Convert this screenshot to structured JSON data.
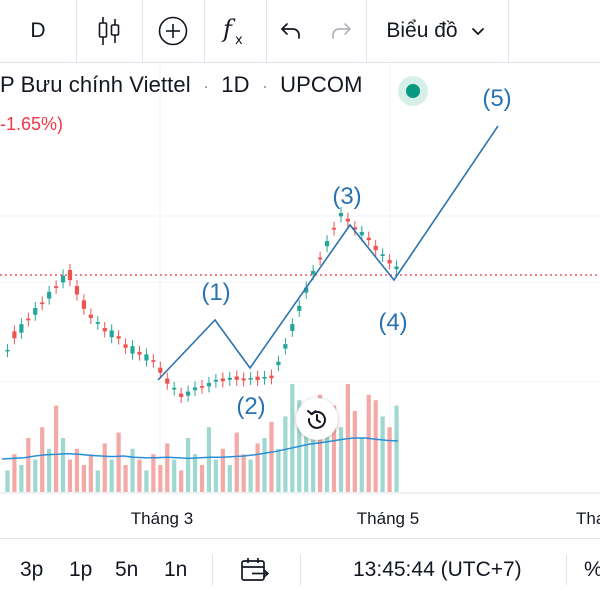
{
  "toolbar": {
    "interval": "D",
    "chart_menu_label": "Biểu đồ",
    "icons": [
      "candlestick-icon",
      "add-circle-icon",
      "fx-indicators-icon",
      "undo-icon",
      "redo-icon",
      "chevron-down-icon"
    ]
  },
  "legend": {
    "symbol_name": "P Bưu chính Viettel",
    "interval": "1D",
    "exchange": "UPCOM",
    "separator": "·",
    "change": "-1.65%)"
  },
  "colors": {
    "up": "#26a69a",
    "down": "#ef5350",
    "volume_up": "#9ed8d0",
    "volume_down": "#f4a9a7",
    "wave": "#2a73b0",
    "ma": "#2b8fd8",
    "price_line": "#f23645",
    "status": "#089981"
  },
  "chart_data": {
    "type": "line",
    "title": "P Bưu chính Viettel · 1D · UPCOM",
    "x_tick_labels": [
      "Tháng 3",
      "Tháng 5",
      "Tha"
    ],
    "candles": [
      [
        0.08,
        0.12
      ],
      [
        0.5,
        0.3
      ],
      [
        0.3,
        0.55
      ],
      [
        0.55,
        0.5
      ],
      [
        0.5,
        0.7
      ],
      [
        0.7,
        0.65
      ],
      [
        0.65,
        0.85
      ],
      [
        0.85,
        0.8
      ],
      [
        0.8,
        1.0
      ],
      [
        1.0,
        0.7
      ],
      [
        0.7,
        0.45
      ],
      [
        0.45,
        0.2
      ],
      [
        0.2,
        0.1
      ],
      [
        0.1,
        0.15
      ],
      [
        0.15,
        0.05
      ],
      [
        0.05,
        0.25
      ],
      [
        0.25,
        0.18
      ],
      [
        0.18,
        0.08
      ],
      [
        0.08,
        0.3
      ],
      [
        0.3,
        0.22
      ],
      [
        0.22,
        0.4
      ],
      [
        0.4,
        0.35
      ],
      [
        0.35,
        0.2
      ],
      [
        0.2,
        0.05
      ],
      [
        0.05,
        0.1
      ],
      [
        0.1,
        0.0
      ],
      [
        0.0,
        0.12
      ],
      [
        0.12,
        0.2
      ],
      [
        0.2,
        0.15
      ],
      [
        0.15,
        0.25
      ],
      [
        0.25,
        0.3
      ],
      [
        0.3,
        0.22
      ],
      [
        0.22,
        0.28
      ],
      [
        0.28,
        0.18
      ],
      [
        0.18,
        0.12
      ],
      [
        0.12,
        0.15
      ],
      [
        0.15,
        0.05
      ],
      [
        0.05,
        0.1
      ],
      [
        0.1,
        0.02
      ],
      [
        0.02,
        0.12
      ],
      [
        0.12,
        0.25
      ],
      [
        0.25,
        0.45
      ],
      [
        0.45,
        0.6
      ],
      [
        0.6,
        0.75
      ],
      [
        0.75,
        0.85
      ],
      [
        0.85,
        0.8
      ],
      [
        0.8,
        0.95
      ],
      [
        0.95,
        0.9
      ],
      [
        0.9,
        1.0
      ],
      [
        1.0,
        0.92
      ],
      [
        0.92,
        0.85
      ],
      [
        0.85,
        0.95
      ],
      [
        0.95,
        0.88
      ],
      [
        0.88,
        0.75
      ],
      [
        0.75,
        0.8
      ],
      [
        0.8,
        0.7
      ],
      [
        0.7,
        0.78
      ]
    ],
    "volume": [
      0.2,
      0.35,
      0.25,
      0.5,
      0.3,
      0.6,
      0.4,
      0.8,
      0.5,
      0.3,
      0.4,
      0.25,
      0.35,
      0.2,
      0.45,
      0.3,
      0.55,
      0.25,
      0.4,
      0.3,
      0.2,
      0.35,
      0.25,
      0.45,
      0.3,
      0.2,
      0.5,
      0.35,
      0.25,
      0.6,
      0.3,
      0.4,
      0.25,
      0.55,
      0.35,
      0.3,
      0.45,
      0.5,
      0.65,
      0.4,
      0.7,
      1.0,
      0.85,
      0.6,
      0.5,
      0.9,
      0.7,
      0.8,
      0.6,
      1.0,
      0.75,
      0.5,
      0.9,
      0.85,
      0.7,
      0.6,
      0.8
    ],
    "moving_average": [
      0.25,
      0.26,
      0.27,
      0.3,
      0.32,
      0.33,
      0.34,
      0.33,
      0.31,
      0.3,
      0.29,
      0.3,
      0.28,
      0.27,
      0.27,
      0.28,
      0.27,
      0.26,
      0.27,
      0.28,
      0.28,
      0.29,
      0.3,
      0.32,
      0.35,
      0.38,
      0.42,
      0.46,
      0.5,
      0.52,
      0.55,
      0.58,
      0.6,
      0.6,
      0.58,
      0.56,
      0.55
    ],
    "elliott_wave_labels": [
      "(1)",
      "(2)",
      "(3)",
      "(4)",
      "(5)"
    ]
  },
  "bottombar": {
    "ranges": [
      "3p",
      "1p",
      "5n",
      "1n"
    ],
    "time": "13:45:44 (UTC+7)",
    "percent_label": "%"
  }
}
